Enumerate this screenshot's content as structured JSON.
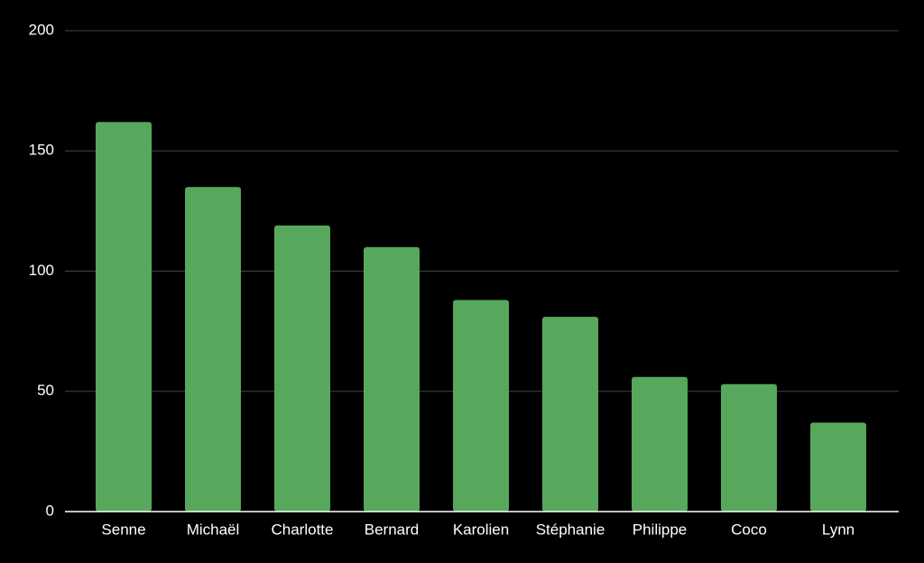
{
  "chart_data": {
    "type": "bar",
    "categories": [
      "Senne",
      "Michaël",
      "Charlotte",
      "Bernard",
      "Karolien",
      "Stéphanie",
      "Philippe",
      "Coco",
      "Lynn"
    ],
    "values": [
      162,
      135,
      119,
      110,
      88,
      81,
      56,
      53,
      37
    ],
    "color": "#57a85c",
    "ylim": [
      0,
      200
    ],
    "yticks": [
      0,
      50,
      100,
      150,
      200
    ],
    "grid": true
  }
}
